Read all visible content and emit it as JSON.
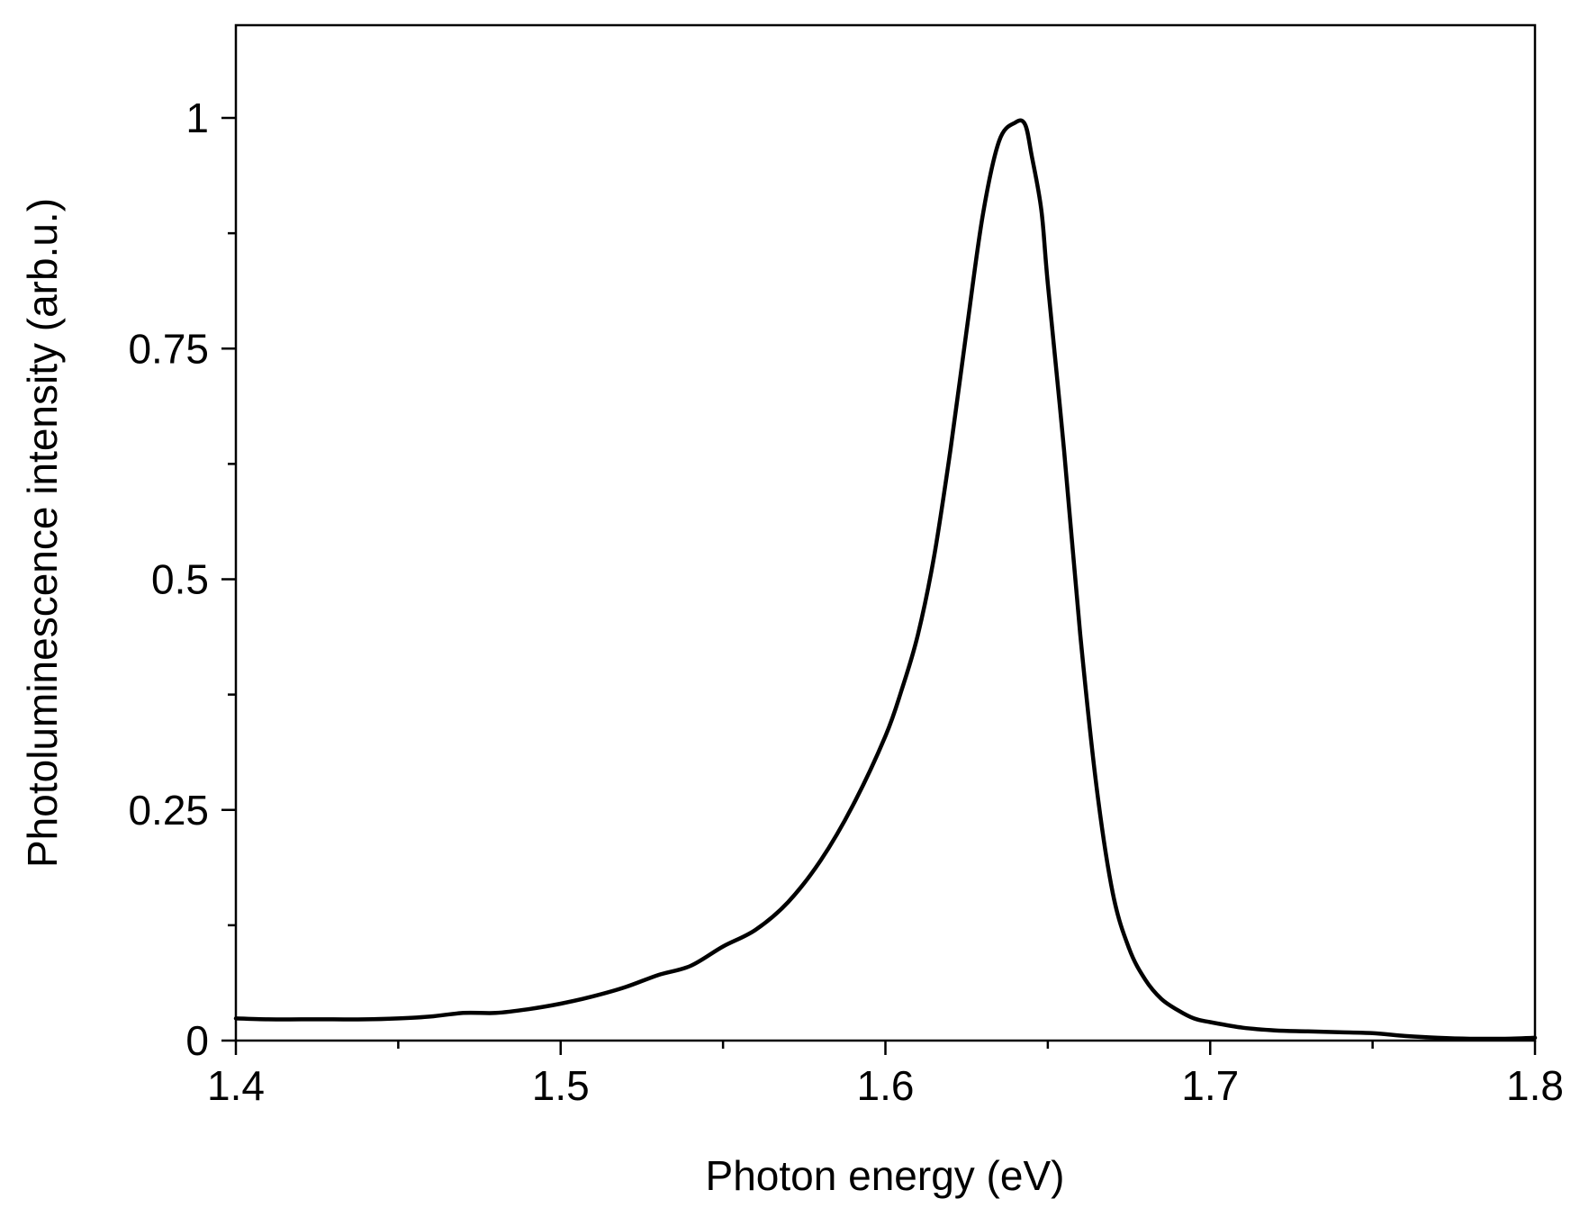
{
  "chart_data": {
    "type": "line",
    "title": "",
    "xlabel": "Photon energy (eV)",
    "ylabel": "Photoluminescence intensity (arb.u.)",
    "xlim": [
      1.4,
      1.8
    ],
    "ylim": [
      0,
      1.1
    ],
    "xticks": [
      {
        "value": 1.4,
        "label": "1.4"
      },
      {
        "value": 1.5,
        "label": "1.5"
      },
      {
        "value": 1.6,
        "label": "1.6"
      },
      {
        "value": 1.7,
        "label": "1.7"
      },
      {
        "value": 1.8,
        "label": "1.8"
      }
    ],
    "yticks": [
      {
        "value": 0,
        "label": "0"
      },
      {
        "value": 0.25,
        "label": "0.25"
      },
      {
        "value": 0.5,
        "label": "0.5"
      },
      {
        "value": 0.75,
        "label": "0.75"
      },
      {
        "value": 1,
        "label": "1"
      }
    ],
    "xminor": [
      1.45,
      1.55,
      1.65,
      1.75
    ],
    "yminor": [
      0.125,
      0.375,
      0.625,
      0.875
    ],
    "grid": false,
    "line_color": "#000000",
    "series": [
      {
        "x": [
          1.4,
          1.41,
          1.42,
          1.43,
          1.44,
          1.45,
          1.46,
          1.47,
          1.48,
          1.49,
          1.5,
          1.51,
          1.52,
          1.53,
          1.54,
          1.55,
          1.56,
          1.57,
          1.58,
          1.59,
          1.6,
          1.605,
          1.61,
          1.615,
          1.62,
          1.625,
          1.63,
          1.635,
          1.64,
          1.643,
          1.645,
          1.648,
          1.65,
          1.655,
          1.66,
          1.665,
          1.67,
          1.675,
          1.68,
          1.685,
          1.69,
          1.695,
          1.7,
          1.71,
          1.72,
          1.73,
          1.74,
          1.75,
          1.76,
          1.77,
          1.78,
          1.79,
          1.8
        ],
        "y": [
          0.024,
          0.023,
          0.023,
          0.023,
          0.023,
          0.024,
          0.026,
          0.03,
          0.03,
          0.034,
          0.04,
          0.048,
          0.058,
          0.071,
          0.081,
          0.102,
          0.12,
          0.15,
          0.195,
          0.255,
          0.33,
          0.38,
          0.44,
          0.525,
          0.64,
          0.77,
          0.895,
          0.975,
          0.995,
          0.993,
          0.96,
          0.9,
          0.82,
          0.64,
          0.44,
          0.275,
          0.16,
          0.1,
          0.066,
          0.045,
          0.033,
          0.024,
          0.02,
          0.014,
          0.011,
          0.01,
          0.009,
          0.008,
          0.005,
          0.003,
          0.002,
          0.002,
          0.003
        ]
      }
    ]
  }
}
